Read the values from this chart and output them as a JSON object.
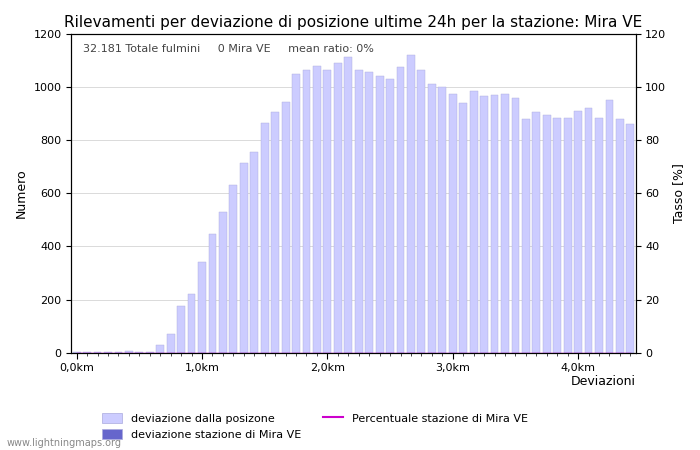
{
  "title": "Rilevamenti per deviazione di posizione ultime 24h per la stazione: Mira VE",
  "subtitle": "32.181 Totale fulmini     0 Mira VE     mean ratio: 0%",
  "xlabel": "Deviazioni",
  "ylabel_left": "Numero",
  "ylabel_right": "Tasso [%]",
  "xlabels": [
    "0,0km",
    "1,0km",
    "2,0km",
    "3,0km",
    "4,0km"
  ],
  "bar_values": [
    2,
    1,
    2,
    3,
    2,
    5,
    2,
    3,
    30,
    70,
    175,
    220,
    340,
    448,
    530,
    630,
    715,
    755,
    865,
    905,
    945,
    1050,
    1065,
    1080,
    1065,
    1090,
    1115,
    1065,
    1055,
    1040,
    1030,
    1075,
    1120,
    1065,
    1010,
    1000,
    975,
    940,
    985,
    965,
    970,
    975,
    960,
    880,
    905,
    895,
    885,
    885,
    910,
    920,
    885,
    950,
    880,
    860
  ],
  "station_values": [
    0,
    0,
    0,
    0,
    0,
    0,
    0,
    0,
    0,
    0,
    0,
    0,
    0,
    0,
    0,
    0,
    0,
    0,
    0,
    0,
    0,
    0,
    0,
    0,
    0,
    0,
    0,
    0,
    0,
    0,
    0,
    0,
    0,
    0,
    0,
    0,
    0,
    0,
    0,
    0,
    0,
    0,
    0,
    0,
    0,
    0,
    0,
    0,
    0,
    0,
    0,
    0,
    0,
    0
  ],
  "percentage_values": [
    0,
    0,
    0,
    0,
    0,
    0,
    0,
    0,
    0,
    0,
    0,
    0,
    0,
    0,
    0,
    0,
    0,
    0,
    0,
    0,
    0,
    0,
    0,
    0,
    0,
    0,
    0,
    0,
    0,
    0,
    0,
    0,
    0,
    0,
    0,
    0,
    0,
    0,
    0,
    0,
    0,
    0,
    0,
    0,
    0,
    0,
    0,
    0,
    0,
    0,
    0,
    0,
    0,
    0
  ],
  "bar_color_light": "#ccccff",
  "bar_color_dark": "#6666cc",
  "bar_edge_color": "#aaaadd",
  "percentage_color": "#cc00cc",
  "ylim_left": [
    0,
    1200
  ],
  "ylim_right": [
    0,
    120
  ],
  "yticks_left": [
    0,
    200,
    400,
    600,
    800,
    1000,
    1200
  ],
  "yticks_right": [
    0,
    20,
    40,
    60,
    80,
    100,
    120
  ],
  "background_color": "#ffffff",
  "grid_color": "#cccccc",
  "title_fontsize": 11,
  "subtitle_fontsize": 8,
  "axis_label_fontsize": 9,
  "tick_fontsize": 8,
  "legend_fontsize": 8,
  "watermark": "www.lightningmaps.org",
  "bars_per_km": 12,
  "legend_items": [
    {
      "label": "deviazione dalla posizone",
      "color": "#ccccff",
      "type": "bar"
    },
    {
      "label": "deviazione stazione di Mira VE",
      "color": "#6666cc",
      "type": "bar"
    },
    {
      "label": "Percentuale stazione di Mira VE",
      "color": "#cc00cc",
      "type": "line"
    }
  ]
}
